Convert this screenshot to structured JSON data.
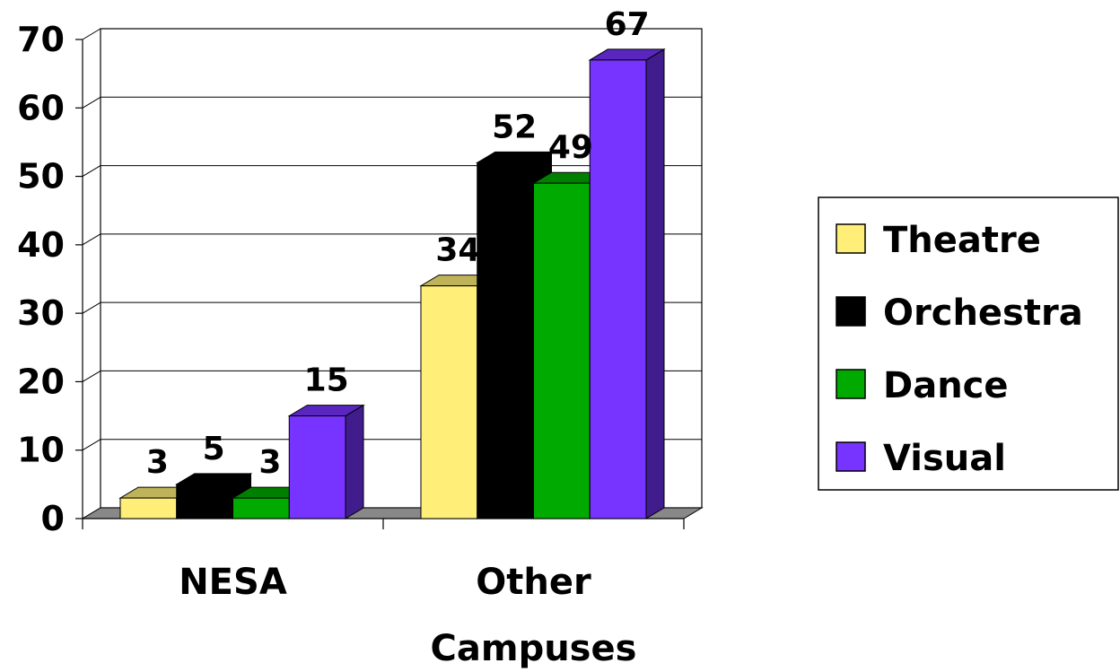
{
  "chart_data": {
    "type": "bar",
    "categories": [
      "NESA",
      "Other Campuses"
    ],
    "category_lines": [
      [
        "NESA"
      ],
      [
        "Other",
        "Campuses"
      ]
    ],
    "series": [
      {
        "name": "Theatre",
        "values": [
          3,
          34
        ],
        "color": "#FFEE77"
      },
      {
        "name": "Orchestra",
        "values": [
          5,
          52
        ],
        "color": "#000000"
      },
      {
        "name": "Dance",
        "values": [
          3,
          49
        ],
        "color": "#00AA00"
      },
      {
        "name": "Visual",
        "values": [
          15,
          67
        ],
        "color": "#7733FF"
      }
    ],
    "y_ticks": [
      "0",
      "10",
      "20",
      "30",
      "40",
      "50",
      "60",
      "70"
    ],
    "ylim": [
      0,
      70
    ],
    "grid": true,
    "three_d": true,
    "legend_position": "right"
  }
}
